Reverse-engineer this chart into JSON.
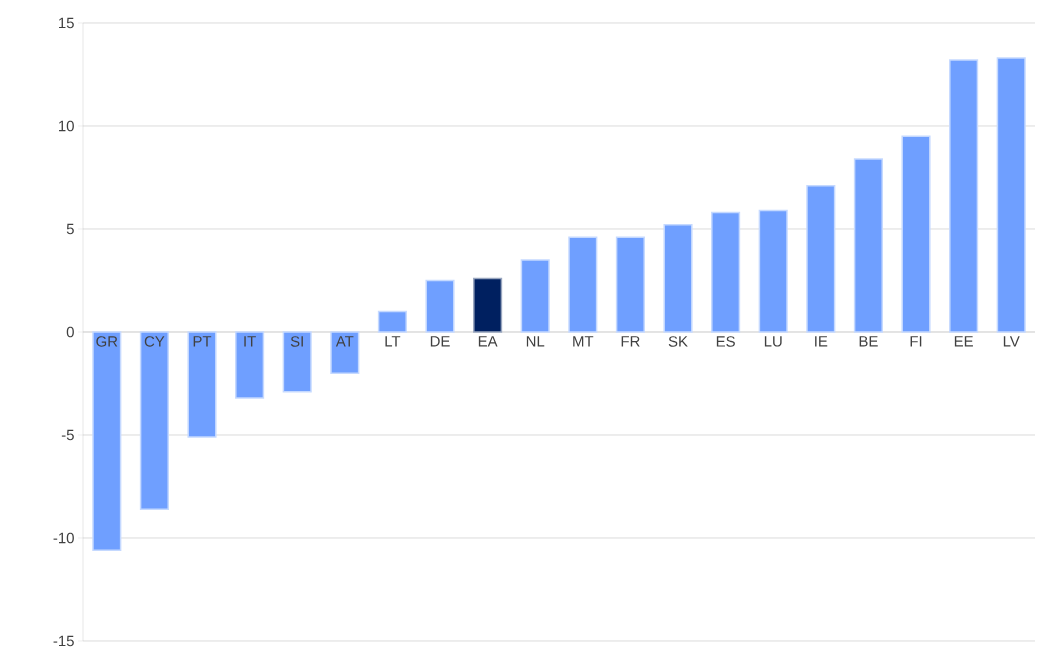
{
  "chart_data": {
    "type": "bar",
    "categories": [
      "GR",
      "CY",
      "PT",
      "IT",
      "SI",
      "AT",
      "LT",
      "DE",
      "EA",
      "NL",
      "MT",
      "FR",
      "SK",
      "ES",
      "LU",
      "IE",
      "BE",
      "FI",
      "EE",
      "LV"
    ],
    "values": [
      -10.6,
      -8.6,
      -5.1,
      -3.2,
      -2.9,
      -2.0,
      1.0,
      2.5,
      2.6,
      3.5,
      4.6,
      4.6,
      5.2,
      5.8,
      5.9,
      7.1,
      8.4,
      9.5,
      13.2,
      13.3
    ],
    "colors": [
      "#6f9fff",
      "#6f9fff",
      "#6f9fff",
      "#6f9fff",
      "#6f9fff",
      "#6f9fff",
      "#6f9fff",
      "#6f9fff",
      "#002060",
      "#6f9fff",
      "#6f9fff",
      "#6f9fff",
      "#6f9fff",
      "#6f9fff",
      "#6f9fff",
      "#6f9fff",
      "#6f9fff",
      "#6f9fff",
      "#6f9fff",
      "#6f9fff"
    ],
    "ylim": [
      -15,
      15
    ],
    "yticks": [
      -15,
      -10,
      -5,
      0,
      5,
      10,
      15
    ],
    "grid": "y"
  }
}
